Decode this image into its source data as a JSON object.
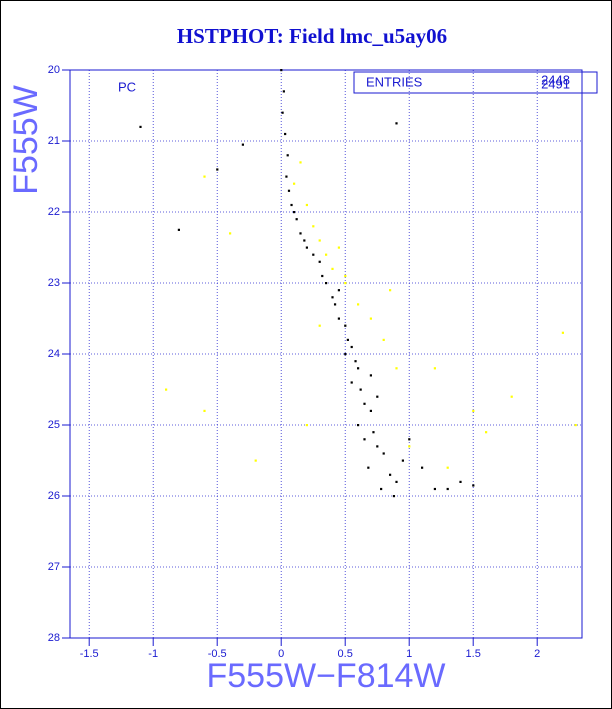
{
  "chart_data": {
    "type": "scatter",
    "title": "HSTPHOT: Field lmc_u5ay06",
    "xlabel": "F555W−F814W",
    "ylabel": "F555W",
    "annotation": "PC",
    "stats": {
      "label": "ENTRIES",
      "values": [
        "2448",
        "2491"
      ]
    },
    "xlim": [
      -1.65,
      2.35
    ],
    "ylim": [
      28,
      20
    ],
    "xticks": [
      -1.5,
      -1,
      -0.5,
      0,
      0.5,
      1,
      1.5,
      2
    ],
    "yticks": [
      20,
      21,
      22,
      23,
      24,
      25,
      26,
      27,
      28
    ],
    "grid": true,
    "series": [
      {
        "color": "#ffff00",
        "x": [
          0.1,
          0.2,
          0.3,
          0.35,
          0.4,
          0.5,
          0.6,
          0.7,
          0.8,
          0.9,
          -0.6,
          -0.4,
          -0.2,
          1.2,
          1.5,
          1.8,
          2.2,
          2.3,
          -0.9,
          -0.6,
          0.5,
          0.3,
          1.0,
          1.3,
          1.6,
          0.15,
          0.25,
          0.45,
          0.2,
          0.85
        ],
        "y": [
          21.6,
          21.9,
          22.4,
          22.6,
          22.8,
          23.0,
          23.3,
          23.5,
          23.8,
          24.2,
          21.5,
          22.3,
          25.5,
          24.2,
          24.8,
          24.6,
          23.7,
          25.0,
          24.5,
          24.8,
          22.9,
          23.6,
          25.3,
          25.6,
          25.1,
          21.3,
          22.2,
          22.5,
          25.0,
          23.1
        ]
      },
      {
        "color": "#000000",
        "x": [
          0.0,
          0.02,
          0.01,
          0.03,
          0.05,
          0.04,
          0.06,
          0.08,
          0.1,
          0.12,
          0.15,
          0.18,
          0.2,
          0.25,
          0.3,
          0.32,
          0.35,
          0.4,
          0.42,
          0.45,
          0.5,
          0.52,
          0.55,
          0.58,
          0.6,
          0.55,
          0.62,
          0.65,
          0.7,
          0.6,
          0.72,
          0.75,
          0.8,
          0.68,
          0.85,
          0.9,
          0.78,
          0.95,
          1.0,
          0.88,
          1.1,
          1.2,
          1.3,
          1.4,
          1.5,
          -1.1,
          -0.8,
          -0.3,
          0.9,
          -0.5,
          0.45,
          0.7,
          0.5,
          0.65,
          0.75
        ],
        "y": [
          20.0,
          20.3,
          20.6,
          20.9,
          21.2,
          21.5,
          21.7,
          21.9,
          22.0,
          22.1,
          22.3,
          22.4,
          22.5,
          22.6,
          22.7,
          22.9,
          23.0,
          23.2,
          23.3,
          23.5,
          23.6,
          23.8,
          23.9,
          24.1,
          24.2,
          24.4,
          24.5,
          24.7,
          24.8,
          25.0,
          25.1,
          25.3,
          25.4,
          25.6,
          25.7,
          25.8,
          25.9,
          25.5,
          25.2,
          26.0,
          25.6,
          25.9,
          25.9,
          25.8,
          25.85,
          20.8,
          22.25,
          21.05,
          20.75,
          21.4,
          23.1,
          24.3,
          24.0,
          25.2,
          24.6
        ]
      }
    ]
  }
}
